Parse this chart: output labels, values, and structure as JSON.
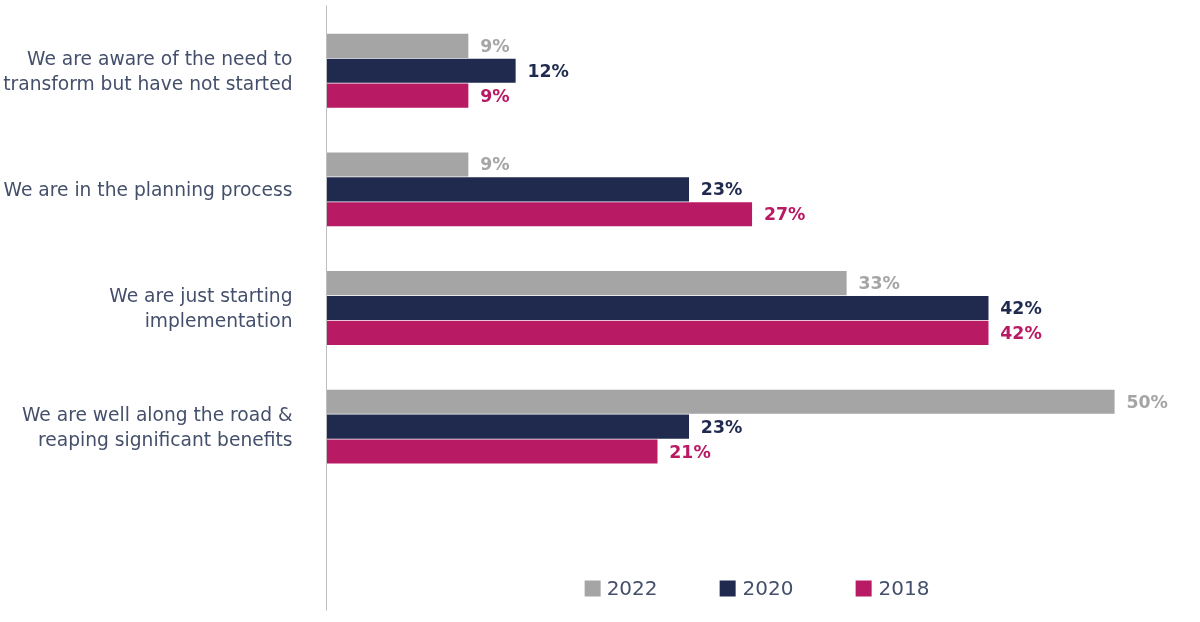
{
  "chart_data": {
    "type": "bar",
    "orientation": "horizontal",
    "categories": [
      "We are aware of the need to transform but have not started",
      "We are in the planning process",
      "We are just starting implementation",
      "We are well along the road & reaping significant benefits"
    ],
    "series": [
      {
        "name": "2022",
        "color": "#a5a5a5",
        "values": [
          9,
          9,
          33,
          50
        ],
        "value_labels": [
          "9%",
          "9%",
          "33%",
          "50%"
        ]
      },
      {
        "name": "2020",
        "color": "#1f2a4e",
        "values": [
          12,
          23,
          42,
          23
        ],
        "value_labels": [
          "12%",
          "23%",
          "42%",
          "23%"
        ]
      },
      {
        "name": "2018",
        "color": "#b81a64",
        "values": [
          9,
          27,
          42,
          21
        ],
        "value_labels": [
          "9%",
          "27%",
          "42%",
          "21%"
        ]
      }
    ],
    "legend": "bottom",
    "grid": false
  }
}
